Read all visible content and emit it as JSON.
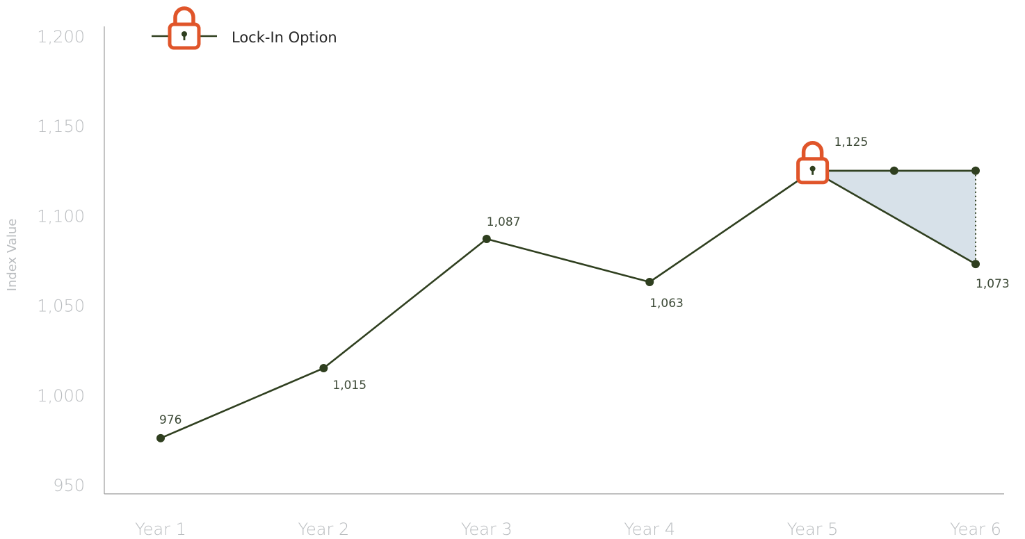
{
  "chart_data": {
    "type": "line",
    "ylabel": "Index Value",
    "xlabel": "",
    "ylim": [
      950,
      1200
    ],
    "yticks": [
      "1,200",
      "1,150",
      "1,100",
      "1,050",
      "1,000",
      "950"
    ],
    "ytick_values": [
      1200,
      1150,
      1100,
      1050,
      1000,
      950
    ],
    "categories": [
      "Year 1",
      "Year 2",
      "Year 3",
      "Year 4",
      "Year 5",
      "Year 6"
    ],
    "series": [
      {
        "values": [
          976,
          1015,
          1087,
          1063,
          1125,
          1073
        ],
        "labels": [
          "976",
          "1,015",
          "1,087",
          "1,063",
          "1,125",
          "1,073"
        ]
      }
    ],
    "lock_in": {
      "legend_label": "Lock-In Option",
      "category_index": 4,
      "value": 1125,
      "locked_line_x": [
        5,
        5.5,
        6
      ],
      "shaded": true
    },
    "legend_position": "top-left",
    "grid": false,
    "colors": {
      "line": "#2f3f1f",
      "lock": "#e0552a",
      "shade": "#d7e1e9",
      "tick": "#b9bcbf",
      "axis": "#9c9c9c"
    }
  }
}
